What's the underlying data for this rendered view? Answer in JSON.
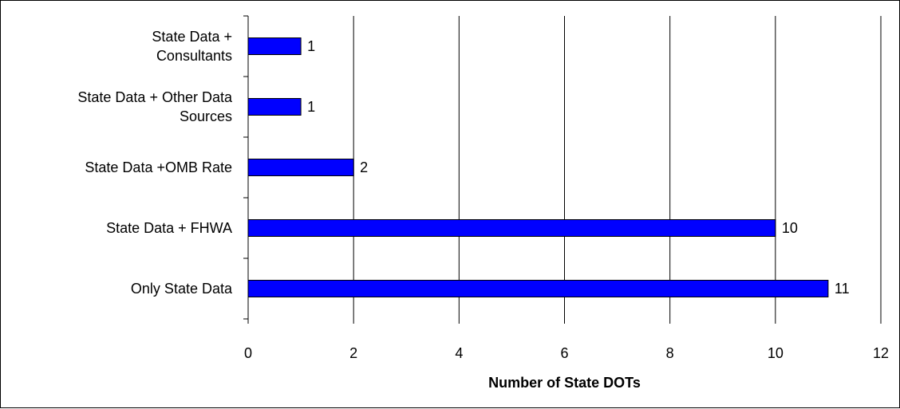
{
  "chart_data": {
    "type": "bar",
    "orientation": "horizontal",
    "categories": [
      [
        "State Data +",
        "Consultants"
      ],
      [
        "State Data + Other Data",
        "Sources"
      ],
      [
        "State Data +OMB Rate"
      ],
      [
        "State Data + FHWA"
      ],
      [
        "Only State Data"
      ]
    ],
    "values": [
      1,
      1,
      2,
      10,
      11
    ],
    "data_labels": [
      "1",
      "1",
      "2",
      "10",
      "11"
    ],
    "title": "",
    "xlabel": "Number of State DOTs",
    "ylabel": "",
    "xlim": [
      0,
      12
    ],
    "xticks": [
      0,
      2,
      4,
      6,
      8,
      10,
      12
    ],
    "xtick_labels": [
      "0",
      "2",
      "4",
      "6",
      "8",
      "10",
      "12"
    ],
    "grid": "vertical",
    "legend": "none",
    "colors": {
      "bar_fill": "#0000FF",
      "bar_stroke": "#000000",
      "grid": "#000000",
      "axis": "#000000",
      "text": "#000000"
    }
  }
}
